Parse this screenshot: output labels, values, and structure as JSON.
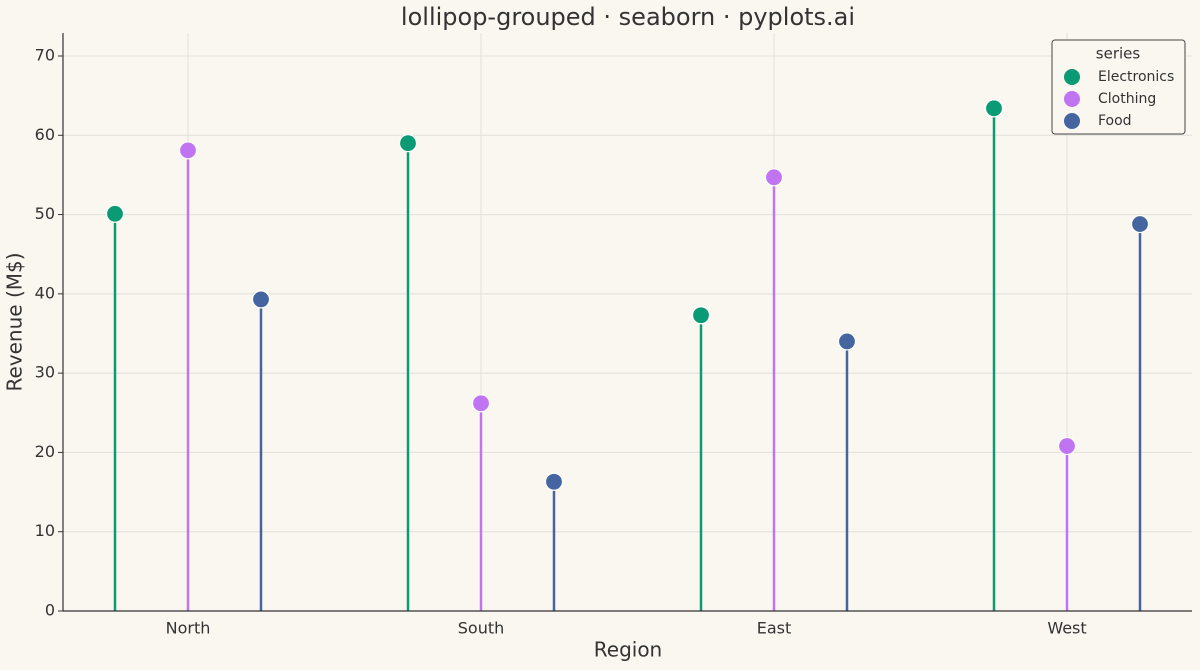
{
  "chart_data": {
    "type": "lollipop",
    "title": "lollipop-grouped · seaborn · pyplots.ai",
    "x_label": "Region",
    "y_label": "Revenue (M$)",
    "categories": [
      "North",
      "South",
      "East",
      "West"
    ],
    "series": [
      {
        "name": "Electronics",
        "color": "#0a9a74",
        "values": [
          50.1,
          59.0,
          37.3,
          63.4
        ]
      },
      {
        "name": "Clothing",
        "color": "#c174f2",
        "values": [
          58.1,
          26.2,
          54.7,
          20.8
        ]
      },
      {
        "name": "Food",
        "color": "#4465a0",
        "values": [
          39.3,
          16.3,
          34.0,
          48.8
        ]
      }
    ],
    "legend_title": "series",
    "legend": "upper right",
    "ylim": [
      0,
      72.9
    ],
    "yticks": [
      0,
      10,
      20,
      30,
      40,
      50,
      60,
      70
    ],
    "grid": true
  }
}
